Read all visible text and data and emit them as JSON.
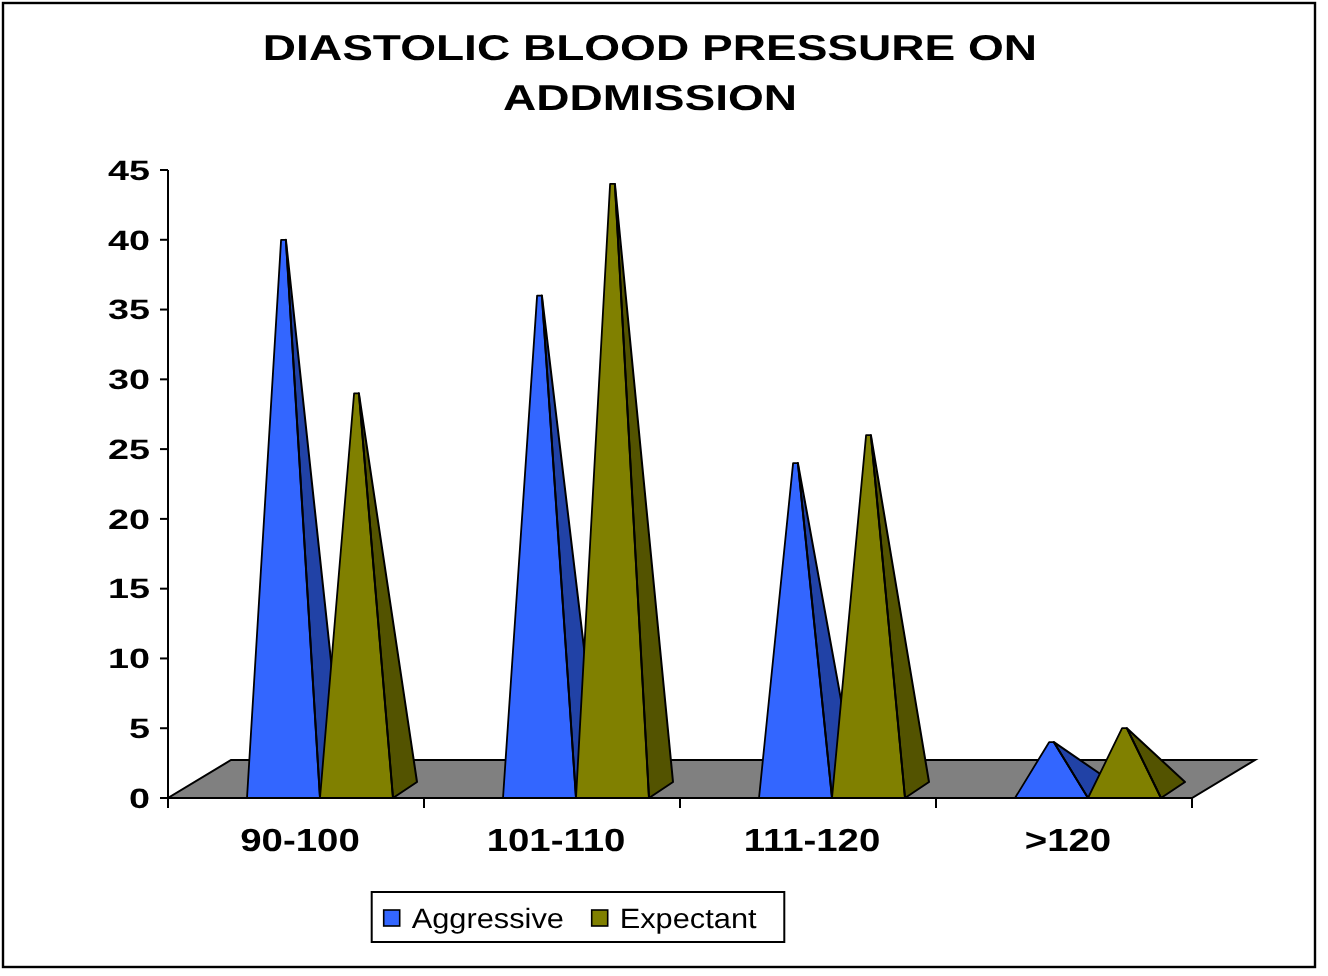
{
  "chart_data": {
    "type": "bar",
    "title": "DIASTOLIC BLOOD PRESSURE ON ADDMISSION",
    "categories": [
      "90-100",
      "101-110",
      "111-120",
      ">120"
    ],
    "series": [
      {
        "name": "Aggressive",
        "color": "#3366ff",
        "values": [
          40,
          36,
          24,
          4
        ]
      },
      {
        "name": "Expectant",
        "color": "#808000",
        "values": [
          29,
          44,
          26,
          5
        ]
      }
    ],
    "ylim": [
      0,
      45
    ],
    "yticks": [
      0,
      5,
      10,
      15,
      20,
      25,
      30,
      35,
      40,
      45
    ],
    "legend": "bottom"
  }
}
